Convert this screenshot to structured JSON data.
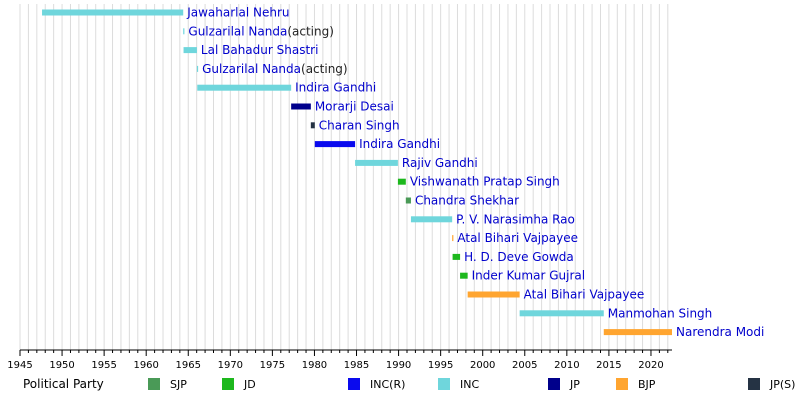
{
  "chart_data": {
    "type": "timeline",
    "x_ticks": [
      1945,
      1950,
      1955,
      1960,
      1965,
      1970,
      1975,
      1980,
      1985,
      1990,
      1995,
      2000,
      2005,
      2010,
      2015,
      2020
    ],
    "xlim": [
      1945,
      2022.5
    ],
    "grid": true,
    "legend": {
      "title": "Political Party",
      "placement": "bottom",
      "entries": [
        {
          "key": "SJP",
          "label": "SJP",
          "color": "#4a9a57"
        },
        {
          "key": "JD",
          "label": "JD",
          "color": "#1db81d"
        },
        {
          "key": "INCR",
          "label": "INC(R)",
          "color": "#0a0aee"
        },
        {
          "key": "INC",
          "label": "INC",
          "color": "#6fd6dc"
        },
        {
          "key": "JP",
          "label": "JP",
          "color": "#00008b"
        },
        {
          "key": "BJP",
          "label": "BJP",
          "color": "#ffa530"
        },
        {
          "key": "JPS",
          "label": "JP(S)",
          "color": "#253344"
        }
      ]
    },
    "terms": [
      {
        "name": "Jawaharlal Nehru",
        "note": "",
        "party": "INC",
        "start": 1947.62,
        "end": 1964.4
      },
      {
        "name": "Gulzarilal Nanda",
        "note": "(acting)",
        "party": "INC",
        "start": 1964.4,
        "end": 1964.44
      },
      {
        "name": "Lal Bahadur Shastri",
        "note": "",
        "party": "INC",
        "start": 1964.44,
        "end": 1966.03
      },
      {
        "name": "Gulzarilal Nanda",
        "note": "(acting)",
        "party": "INC",
        "start": 1966.03,
        "end": 1966.07
      },
      {
        "name": "Indira Gandhi",
        "note": "",
        "party": "INC",
        "start": 1966.07,
        "end": 1977.23
      },
      {
        "name": "Morarji Desai",
        "note": "",
        "party": "JP",
        "start": 1977.23,
        "end": 1979.57
      },
      {
        "name": "Charan Singh",
        "note": "",
        "party": "JPS",
        "start": 1979.57,
        "end": 1980.04
      },
      {
        "name": "Indira Gandhi",
        "note": "",
        "party": "INCR",
        "start": 1980.04,
        "end": 1984.83
      },
      {
        "name": "Rajiv Gandhi",
        "note": "",
        "party": "INC",
        "start": 1984.83,
        "end": 1989.92
      },
      {
        "name": "Vishwanath Pratap Singh",
        "note": "",
        "party": "JD",
        "start": 1989.92,
        "end": 1990.86
      },
      {
        "name": "Chandra Shekhar",
        "note": "",
        "party": "SJP",
        "start": 1990.86,
        "end": 1991.47
      },
      {
        "name": "P. V. Narasimha Rao",
        "note": "",
        "party": "INC",
        "start": 1991.47,
        "end": 1996.37
      },
      {
        "name": "Atal Bihari Vajpayee",
        "note": "",
        "party": "BJP",
        "start": 1996.37,
        "end": 1996.42
      },
      {
        "name": "H. D. Deve Gowda",
        "note": "",
        "party": "JD",
        "start": 1996.42,
        "end": 1997.31
      },
      {
        "name": "Inder Kumar Gujral",
        "note": "",
        "party": "JD",
        "start": 1997.31,
        "end": 1998.21
      },
      {
        "name": "Atal Bihari Vajpayee",
        "note": "",
        "party": "BJP",
        "start": 1998.21,
        "end": 2004.39
      },
      {
        "name": "Manmohan Singh",
        "note": "",
        "party": "INC",
        "start": 2004.39,
        "end": 2014.39
      },
      {
        "name": "Narendra Modi",
        "note": "",
        "party": "BJP",
        "start": 2014.39,
        "end": 2022.5
      }
    ]
  }
}
